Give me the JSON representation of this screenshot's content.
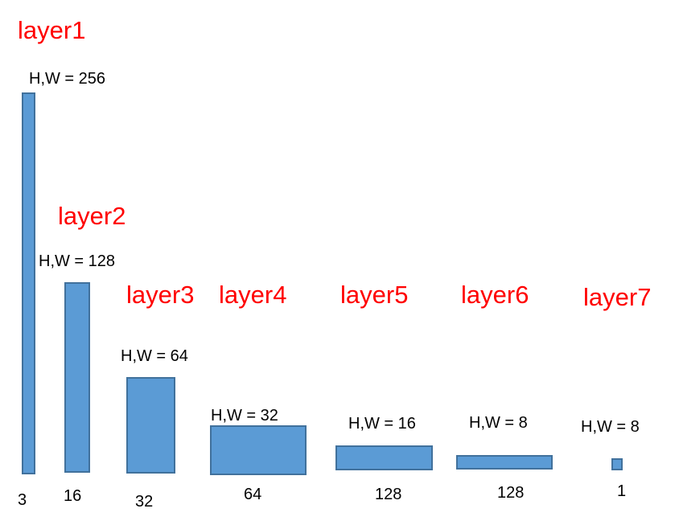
{
  "layers": [
    {
      "title": "layer1",
      "size_label": "H,W = 256",
      "channels": "3"
    },
    {
      "title": "layer2",
      "size_label": "H,W = 128",
      "channels": "16"
    },
    {
      "title": "layer3",
      "size_label": "H,W = 64",
      "channels": "32"
    },
    {
      "title": "layer4",
      "size_label": "H,W = 32",
      "channels": "64"
    },
    {
      "title": "layer5",
      "size_label": "H,W = 16",
      "channels": "128"
    },
    {
      "title": "layer6",
      "size_label": "H,W = 8",
      "channels": "128"
    },
    {
      "title": "layer7",
      "size_label": "H,W = 8",
      "channels": "1"
    }
  ],
  "colors": {
    "title": "#ff0000",
    "block_fill": "#5b9bd5",
    "block_border": "#41719c",
    "text": "#000000"
  }
}
